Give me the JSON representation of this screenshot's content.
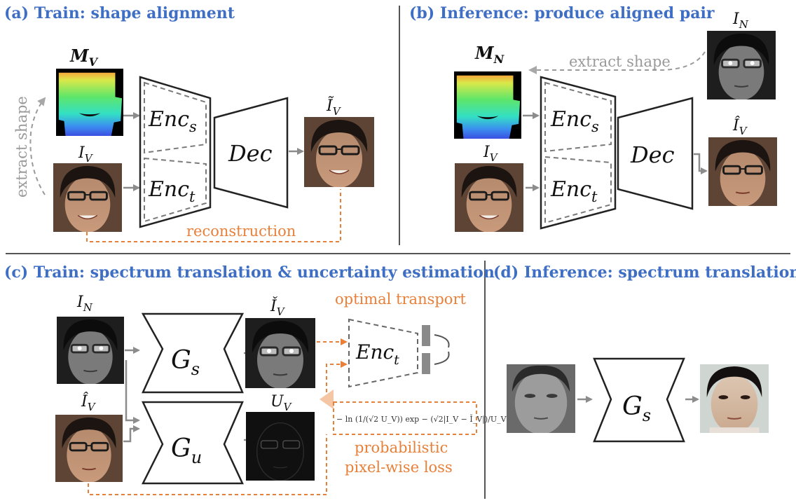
{
  "panel_a": {
    "title": "(a) Train: shape alignment",
    "mask_label": "M",
    "mask_sub": "V",
    "input_label": "I",
    "input_sub": "V",
    "enc_shape": "Enc",
    "enc_shape_sub": "s",
    "enc_texture": "Enc",
    "enc_texture_sub": "t",
    "decoder": "Dec",
    "output_label": "Ĩ",
    "output_sub": "V",
    "extract_shape": "extract shape",
    "reconstruction": "reconstruction"
  },
  "panel_b": {
    "title": "(b) Inference: produce aligned pair",
    "nir_label": "I",
    "nir_sub": "N",
    "mask_label": "M",
    "mask_sub": "N",
    "input_label": "I",
    "input_sub": "V",
    "enc_shape": "Enc",
    "enc_shape_sub": "s",
    "enc_texture": "Enc",
    "enc_texture_sub": "t",
    "decoder": "Dec",
    "output_label": "Î",
    "output_sub": "V",
    "extract_shape": "extract shape"
  },
  "panel_c": {
    "title": "(c) Train: spectrum translation & uncertainty estimation",
    "nir_label": "I",
    "nir_sub": "N",
    "aligned_label": "Î",
    "aligned_sub": "V",
    "gen_s": "G",
    "gen_s_sub": "s",
    "gen_u": "G",
    "gen_u_sub": "u",
    "translated_label": "Ǐ",
    "translated_sub": "V",
    "uncert_label": "U",
    "uncert_sub": "V",
    "enc_texture": "Enc",
    "enc_texture_sub": "t",
    "optimal_transport": "optimal transport",
    "prob_loss_line1": "probabilistic",
    "prob_loss_line2": "pixel-wise loss",
    "formula": "− ln (1/(√2 U_V)) exp − (√2|I_V − Ǐ_V|)/U_V"
  },
  "panel_d": {
    "title": "(d) Inference: spectrum translation",
    "gen_s": "G",
    "gen_s_sub": "s"
  },
  "colors": {
    "title_blue": "#3f6fc4",
    "orange": "#e8803a",
    "gray_arrow": "#8c8c8c"
  }
}
